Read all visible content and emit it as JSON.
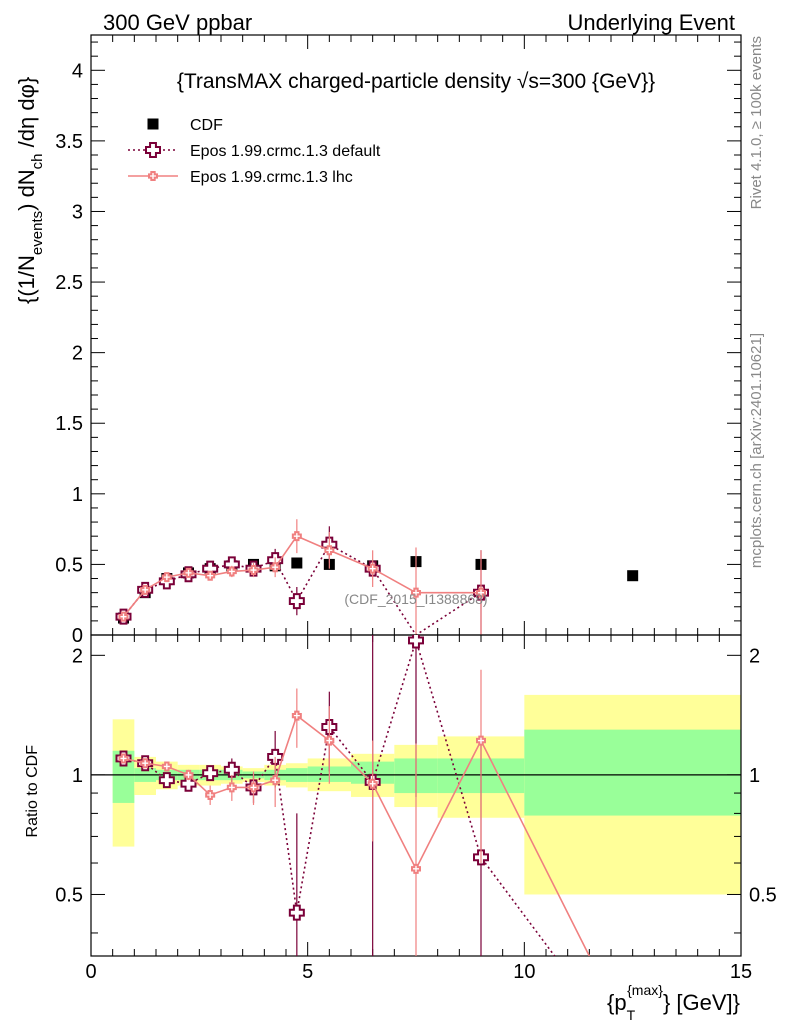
{
  "header": {
    "left": "300 GeV ppbar",
    "right": "Underlying Event"
  },
  "side_texts": {
    "rivet": "Rivet 4.1.0, ≥ 100k events",
    "mcplots": "mcplots.cern.ch [arXiv:2401.10621]"
  },
  "colors": {
    "cdf": "#000000",
    "default": "#7a0038",
    "lhc": "#f08080",
    "band_inner": "#99ff99",
    "band_outer": "#ffff99"
  },
  "chart_data": {
    "type": "scatter",
    "title": "{TransMAX charged-particle density √s=300 {GeV}}",
    "watermark": "(CDF_2015_I1388868)",
    "xlabel": "{p_T^{max}} [GeV]}",
    "xlabel_parts": {
      "pre": "{p",
      "sub": "T",
      "sup": "{max}",
      "post": "} [GeV]}"
    },
    "ylabel": "{(1/N_events) dN_ch /dη dφ}",
    "ylabel_parts": {
      "a": "{(1/N",
      "b": "events",
      "c": ") dN",
      "d": "ch",
      "e": " /dη  dφ}"
    },
    "ratio_ylabel": "Ratio to CDF",
    "xlim": [
      0,
      15
    ],
    "ylim": [
      0,
      4.25
    ],
    "ratio_ylim": [
      0.35,
      2.25
    ],
    "x_ticks": [
      0,
      5,
      10,
      15
    ],
    "y_ticks": [
      0,
      0.5,
      1,
      1.5,
      2,
      2.5,
      3,
      3.5,
      4
    ],
    "y_tick_labels": [
      "0",
      "0.5",
      "1",
      "1.5",
      "2",
      "2.5",
      "3",
      "3.5",
      "4"
    ],
    "ratio_ticks": [
      0.5,
      1,
      2
    ],
    "ratio_tick_labels": [
      "0.5",
      "1",
      "2"
    ],
    "legend": [
      "CDF",
      "Epos 1.99.crmc.1.3 default",
      "Epos 1.99.crmc.1.3 lhc"
    ],
    "cdf": {
      "name": "CDF",
      "x": [
        0.75,
        1.25,
        1.75,
        2.25,
        2.75,
        3.25,
        3.75,
        4.25,
        4.75,
        5.5,
        6.5,
        7.5,
        9.0,
        12.5
      ],
      "y": [
        0.12,
        0.3,
        0.4,
        0.44,
        0.47,
        0.49,
        0.5,
        0.49,
        0.51,
        0.5,
        0.49,
        0.52,
        0.5,
        0.42
      ],
      "xerr": [
        0.25,
        0.25,
        0.25,
        0.25,
        0.25,
        0.25,
        0.25,
        0.25,
        0.25,
        0.5,
        0.5,
        0.5,
        1.0,
        2.5
      ]
    },
    "series": [
      {
        "name": "Epos 1.99.crmc.1.3 default",
        "x": [
          0.75,
          1.25,
          1.75,
          2.25,
          2.75,
          3.25,
          3.75,
          4.25,
          4.75,
          5.5,
          6.5,
          7.5,
          9.0,
          12.5
        ],
        "y": [
          0.13,
          0.32,
          0.38,
          0.43,
          0.47,
          0.5,
          0.47,
          0.53,
          0.24,
          0.64,
          0.47,
          0.0,
          0.3,
          0.0
        ],
        "yerr": [
          0.01,
          0.01,
          0.015,
          0.02,
          0.025,
          0.04,
          0.05,
          0.08,
          0.1,
          0.13,
          0.0,
          0.0,
          0.3,
          0.0
        ],
        "ratio": [
          1.1,
          1.07,
          0.97,
          0.95,
          1.01,
          1.03,
          0.93,
          1.11,
          0.45,
          1.32,
          0.96,
          2.18,
          0.62,
          0.0
        ],
        "ratio_err": [
          0.01,
          0.02,
          0.02,
          0.03,
          0.04,
          0.07,
          0.08,
          0.18,
          0.35,
          0.3,
          1.3,
          1.3,
          0.62,
          0.0
        ]
      },
      {
        "name": "Epos 1.99.crmc.1.3 lhc",
        "x": [
          0.75,
          1.25,
          1.75,
          2.25,
          2.75,
          3.25,
          3.75,
          4.25,
          4.75,
          5.5,
          6.5,
          7.5,
          9.0,
          12.5
        ],
        "y": [
          0.13,
          0.32,
          0.41,
          0.44,
          0.42,
          0.45,
          0.46,
          0.48,
          0.7,
          0.6,
          0.47,
          0.3,
          0.3,
          0.0
        ],
        "yerr": [
          0.01,
          0.01,
          0.015,
          0.02,
          0.03,
          0.04,
          0.05,
          0.07,
          0.12,
          0.13,
          0.13,
          0.32,
          0.3,
          0.0
        ],
        "ratio": [
          1.1,
          1.07,
          1.05,
          1.0,
          0.89,
          0.93,
          0.93,
          0.97,
          1.41,
          1.22,
          0.95,
          0.58,
          1.22,
          0.0
        ],
        "ratio_err": [
          0.01,
          0.02,
          0.02,
          0.03,
          0.05,
          0.07,
          0.09,
          0.14,
          0.24,
          0.27,
          0.27,
          0.62,
          0.62,
          0.0
        ]
      }
    ],
    "default_extra_line": {
      "x": [
        9.0,
        10.7
      ],
      "ratio": [
        0.62,
        0.35
      ]
    },
    "lhc_extra_line": {
      "x": [
        9.0,
        11.5
      ],
      "ratio": [
        1.22,
        0.35
      ]
    },
    "bands": {
      "edges": [
        0.5,
        1.0,
        1.5,
        2.0,
        2.5,
        3.0,
        3.5,
        4.0,
        4.5,
        5.0,
        6.0,
        7.0,
        8.0,
        10.0,
        15.0
      ],
      "inner_lo": [
        0.85,
        0.96,
        0.97,
        0.97,
        0.97,
        0.97,
        0.98,
        0.97,
        0.96,
        0.96,
        0.95,
        0.9,
        0.9,
        0.79
      ],
      "inner_hi": [
        1.15,
        1.04,
        1.03,
        1.03,
        1.03,
        1.03,
        1.02,
        1.03,
        1.04,
        1.05,
        1.08,
        1.1,
        1.1,
        1.3
      ],
      "outer_lo": [
        0.66,
        0.89,
        0.92,
        0.94,
        0.94,
        0.95,
        0.96,
        0.94,
        0.93,
        0.91,
        0.88,
        0.83,
        0.78,
        0.5
      ],
      "outer_hi": [
        1.38,
        1.11,
        1.08,
        1.06,
        1.06,
        1.05,
        1.04,
        1.06,
        1.07,
        1.1,
        1.13,
        1.19,
        1.25,
        1.59
      ]
    }
  }
}
